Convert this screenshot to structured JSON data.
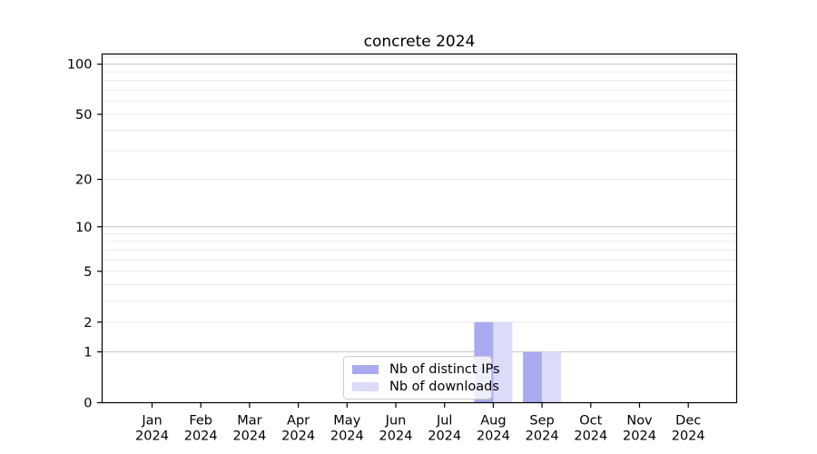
{
  "chart_data": {
    "type": "bar",
    "title": "concrete 2024",
    "categories": [
      "Jan",
      "Feb",
      "Mar",
      "Apr",
      "May",
      "Jun",
      "Jul",
      "Aug",
      "Sep",
      "Oct",
      "Nov",
      "Dec"
    ],
    "category_year": "2024",
    "series": [
      {
        "name": "Nb of distinct IPs",
        "color": "#aaaaf0",
        "values": [
          0,
          0,
          0,
          0,
          0,
          0,
          0,
          2,
          1,
          0,
          0,
          0
        ]
      },
      {
        "name": "Nb of downloads",
        "color": "#dcdcf8",
        "values": [
          0,
          0,
          0,
          0,
          0,
          0,
          0,
          2,
          1,
          0,
          0,
          0
        ]
      }
    ],
    "xlabel": "",
    "ylabel": "",
    "yscale": "log1p",
    "ylim": [
      0,
      115
    ],
    "yticks": [
      0,
      1,
      2,
      5,
      10,
      20,
      50,
      100
    ],
    "grid": true,
    "major_grid_values": [
      1,
      10,
      100
    ],
    "minor_grid_values": [
      2,
      3,
      4,
      5,
      6,
      7,
      8,
      9,
      20,
      30,
      40,
      50,
      60,
      70,
      80,
      90,
      110
    ],
    "legend_position": "lower center"
  },
  "colors": {
    "background": "#ffffff",
    "spine": "#000000",
    "text": "#000000",
    "major_grid": "#c6c6c6",
    "minor_grid": "#ebebeb",
    "legend_border": "#cccccc"
  }
}
